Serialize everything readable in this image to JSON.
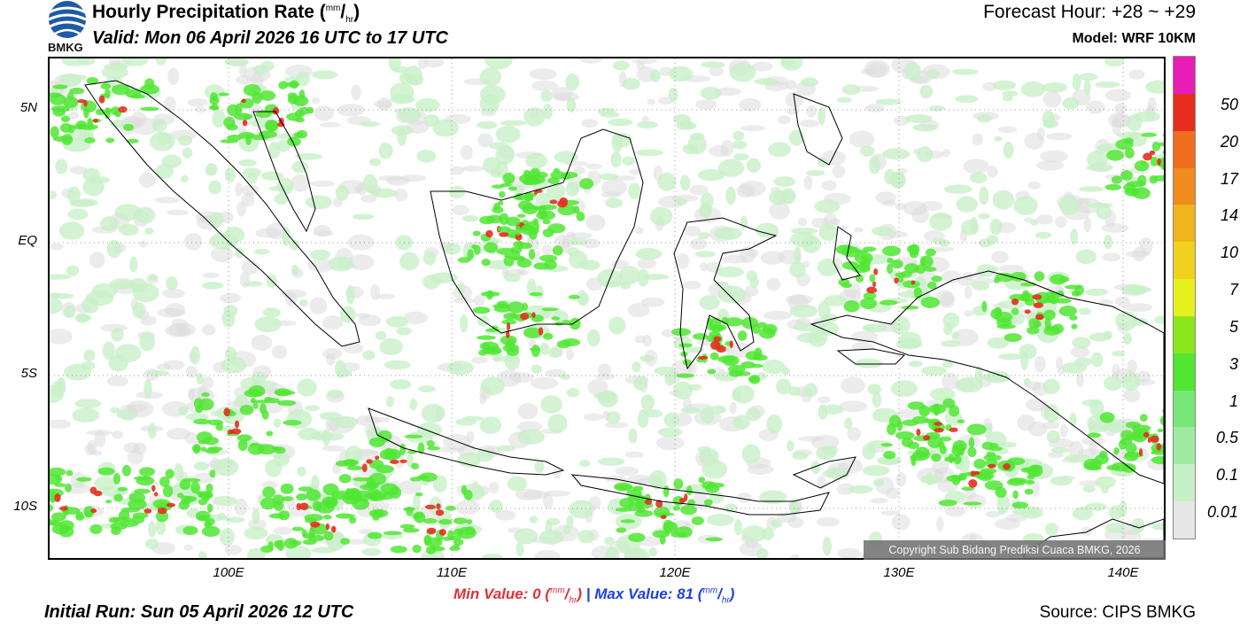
{
  "header": {
    "title": "Hourly Precipitation Rate",
    "unit_num": "mm",
    "unit_den": "hr",
    "valid": "Valid: Mon 06 April 2026 16 UTC to 17 UTC",
    "forecast_hour": "Forecast Hour: +28 ~ +29",
    "model": "Model: WRF 10KM"
  },
  "logo": {
    "text": "BMKG",
    "icon": "bmkg-logo-icon"
  },
  "axes": {
    "lat_labels": [
      "5N",
      "EQ",
      "5S",
      "10S"
    ],
    "lon_labels": [
      "100E",
      "110E",
      "120E",
      "130E",
      "140E"
    ]
  },
  "stats": {
    "min_label": "Min Value:",
    "min_value": "0",
    "max_label": "Max Value:",
    "max_value": "81",
    "separator": "|"
  },
  "footer": {
    "initial_run": "Initial Run: Sun 05 April 2026 12 UTC",
    "source": "Source: CIPS BMKG",
    "copyright": "Copyright Sub Bidang Prediksi Cuaca BMKG, 2026"
  },
  "colorbar": {
    "levels": [
      {
        "label": "0.01",
        "color": "#e6e6e6"
      },
      {
        "label": "0.1",
        "color": "#c8f0c8"
      },
      {
        "label": "0.5",
        "color": "#a0eaa0"
      },
      {
        "label": "1",
        "color": "#78e678"
      },
      {
        "label": "3",
        "color": "#50e632"
      },
      {
        "label": "5",
        "color": "#8ce61e"
      },
      {
        "label": "7",
        "color": "#e6f01e"
      },
      {
        "label": "10",
        "color": "#f0d21e"
      },
      {
        "label": "14",
        "color": "#f0b41e"
      },
      {
        "label": "17",
        "color": "#f08c1e"
      },
      {
        "label": "20",
        "color": "#f06e1e"
      },
      {
        "label": "50",
        "color": "#e62d1e"
      },
      {
        "label": "",
        "color": "#e61eb4"
      }
    ]
  },
  "colors": {
    "land_outline": "#000000",
    "rain_light": "#c8f0c8",
    "rain_moderate": "#50e632",
    "rain_heavy": "#e62d1e"
  }
}
